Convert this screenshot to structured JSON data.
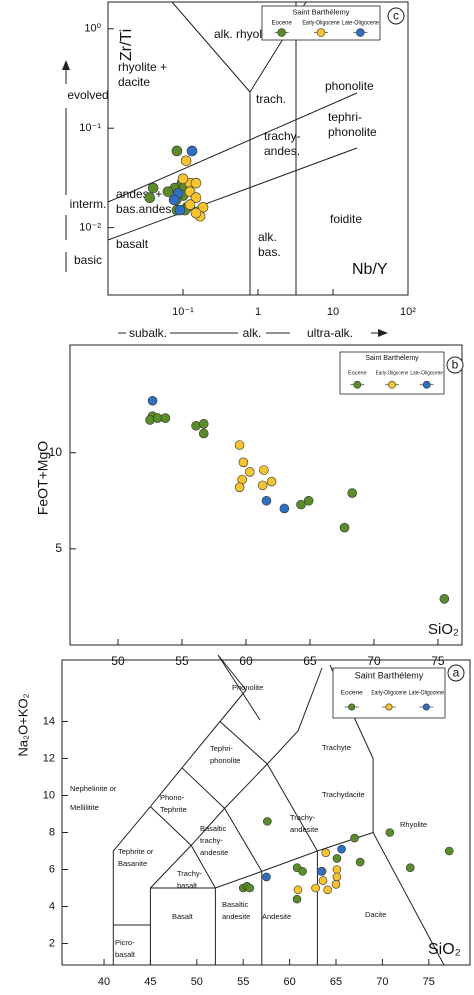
{
  "chart_data": [
    {
      "type": "scatter",
      "panel_label": "c",
      "xlabel": "Nb/Y",
      "ylabel": "Zr/Ti",
      "x_log": true,
      "y_log": true,
      "xlim": [
        0.01,
        100
      ],
      "ylim": [
        0.0021,
        1.86
      ],
      "xticks": [
        {
          "value": 0.1,
          "label": "10⁻¹"
        },
        1,
        10,
        {
          "value": 100,
          "label": "10²"
        }
      ],
      "yticks": [
        {
          "value": 1,
          "label": "10⁰"
        },
        {
          "value": 0.1,
          "label": "10⁻¹"
        },
        {
          "value": 0.01,
          "label": "10⁻²"
        }
      ],
      "legend_title": "Saint Barthélemy",
      "legend_loc": "upper right",
      "series": [
        {
          "name": "Eocene",
          "color": "#5b8c2a",
          "x": [
            0.083,
            0.078,
            0.063,
            0.097,
            0.103,
            0.1,
            0.083,
            0.113,
            0.106,
            0.081,
            0.04,
            0.036
          ],
          "y": [
            0.059,
            0.025,
            0.023,
            0.028,
            0.025,
            0.021,
            0.015,
            0.016,
            0.015,
            0.019,
            0.025,
            0.02
          ]
        },
        {
          "name": "Early-Oligocene",
          "color": "#f5c431",
          "x": [
            0.11,
            0.124,
            0.149,
            0.124,
            0.149,
            0.185,
            0.169,
            0.149,
            0.124,
            0.1
          ],
          "y": [
            0.047,
            0.028,
            0.028,
            0.023,
            0.02,
            0.016,
            0.013,
            0.014,
            0.017,
            0.031
          ]
        },
        {
          "name": "Late-Oligocene",
          "color": "#2f6fc1",
          "x": [
            0.132,
            0.086,
            0.076,
            0.091
          ],
          "y": [
            0.059,
            0.022,
            0.019,
            0.015
          ]
        }
      ],
      "annotations": [
        "alk. rhyolite",
        "rhyolite +",
        "dacite",
        "trach.",
        "phonolite",
        "tephri-",
        "phonolite",
        "trachy-",
        "andes.",
        "andes. +",
        "bas.andes",
        "basalt",
        "alk.",
        "bas.",
        "foidite"
      ],
      "side_labels": [
        "evolved",
        "interm.",
        "basic"
      ],
      "bottom_labels": [
        "subalk.",
        "alk.",
        "ultra-alk."
      ]
    },
    {
      "type": "scatter",
      "panel_label": "b",
      "xlabel": "SiO₂",
      "ylabel": "FeOT+MgO",
      "x_log": false,
      "y_log": false,
      "xlim": [
        46.25,
        76.88
      ],
      "ylim": [
        0,
        15.6
      ],
      "xticks": [
        50,
        55,
        60,
        65,
        70,
        75
      ],
      "yticks": [
        5,
        10
      ],
      "legend_title": "Saint Barthélemy",
      "legend_loc": "upper right",
      "series": [
        {
          "name": "Eocene",
          "color": "#5b8c2a",
          "x": [
            52.7,
            52.5,
            53.1,
            53.7,
            56.1,
            56.7,
            56.7,
            64.3,
            64.9,
            68.3,
            67.7,
            75.5
          ],
          "y": [
            11.9,
            11.7,
            11.8,
            11.8,
            11.4,
            11.5,
            11.0,
            7.3,
            7.5,
            7.9,
            6.1,
            2.4
          ]
        },
        {
          "name": "Early-Oligocene",
          "color": "#f5c431",
          "x": [
            59.5,
            59.8,
            60.3,
            59.7,
            59.5,
            61.4,
            61.3,
            62.0
          ],
          "y": [
            10.4,
            9.5,
            9.0,
            8.6,
            8.2,
            9.1,
            8.3,
            8.5
          ]
        },
        {
          "name": "Late-Oligocene",
          "color": "#2f6fc1",
          "x": [
            52.7,
            61.6,
            63.0
          ],
          "y": [
            12.7,
            7.5,
            7.1
          ]
        }
      ]
    },
    {
      "type": "scatter",
      "panel_label": "a",
      "xlabel": "SiO₂",
      "ylabel": "Na₂O+KO₂",
      "x_log": false,
      "y_log": false,
      "xlim": [
        35.47,
        79.44
      ],
      "ylim": [
        0.84,
        17.32
      ],
      "xticks": [
        40,
        45,
        50,
        55,
        60,
        65,
        70,
        75
      ],
      "yticks": [
        2,
        4,
        6,
        8,
        10,
        12,
        14
      ],
      "legend_title": "Saint Barthélemy",
      "legend_loc": "upper right",
      "series": [
        {
          "name": "Eocene",
          "color": "#5b8c2a",
          "x": [
            55.0,
            55.4,
            55.7,
            57.6,
            60.8,
            61.4,
            60.8,
            65.1,
            67.0,
            67.6,
            70.8,
            73.0,
            77.2
          ],
          "y": [
            5.0,
            5.1,
            5.0,
            8.6,
            6.1,
            5.9,
            4.4,
            6.6,
            7.7,
            6.4,
            8.0,
            6.1,
            7.0
          ]
        },
        {
          "name": "Early-Oligocene",
          "color": "#f5c431",
          "x": [
            63.9,
            63.5,
            65.1,
            65.1,
            65.0,
            64.1,
            62.8,
            60.9,
            63.6
          ],
          "y": [
            6.9,
            5.9,
            6.0,
            5.6,
            5.2,
            4.9,
            5.0,
            4.9,
            5.4
          ]
        },
        {
          "name": "Late-Oligocene",
          "color": "#2f6fc1",
          "x": [
            57.5,
            63.4,
            65.6
          ],
          "y": [
            5.6,
            5.9,
            7.1
          ]
        }
      ],
      "annotations": [
        "Phonolite",
        "Tephri-",
        "phonolite",
        "Trachyte",
        "Phono-",
        "Tephrite",
        "Nephelinite or",
        "Mellilitite",
        "Trachy-",
        "andesite",
        "Trachydacite",
        "Rhyolite",
        "Basaltic",
        "trachy-",
        "andesite",
        "Tephrite or",
        "Basanite",
        "Trachy-",
        "basalt",
        "Basalt",
        "Basaltic",
        "andesite",
        "Andesite",
        "Dacite",
        "Picro-",
        "basalt"
      ]
    }
  ]
}
